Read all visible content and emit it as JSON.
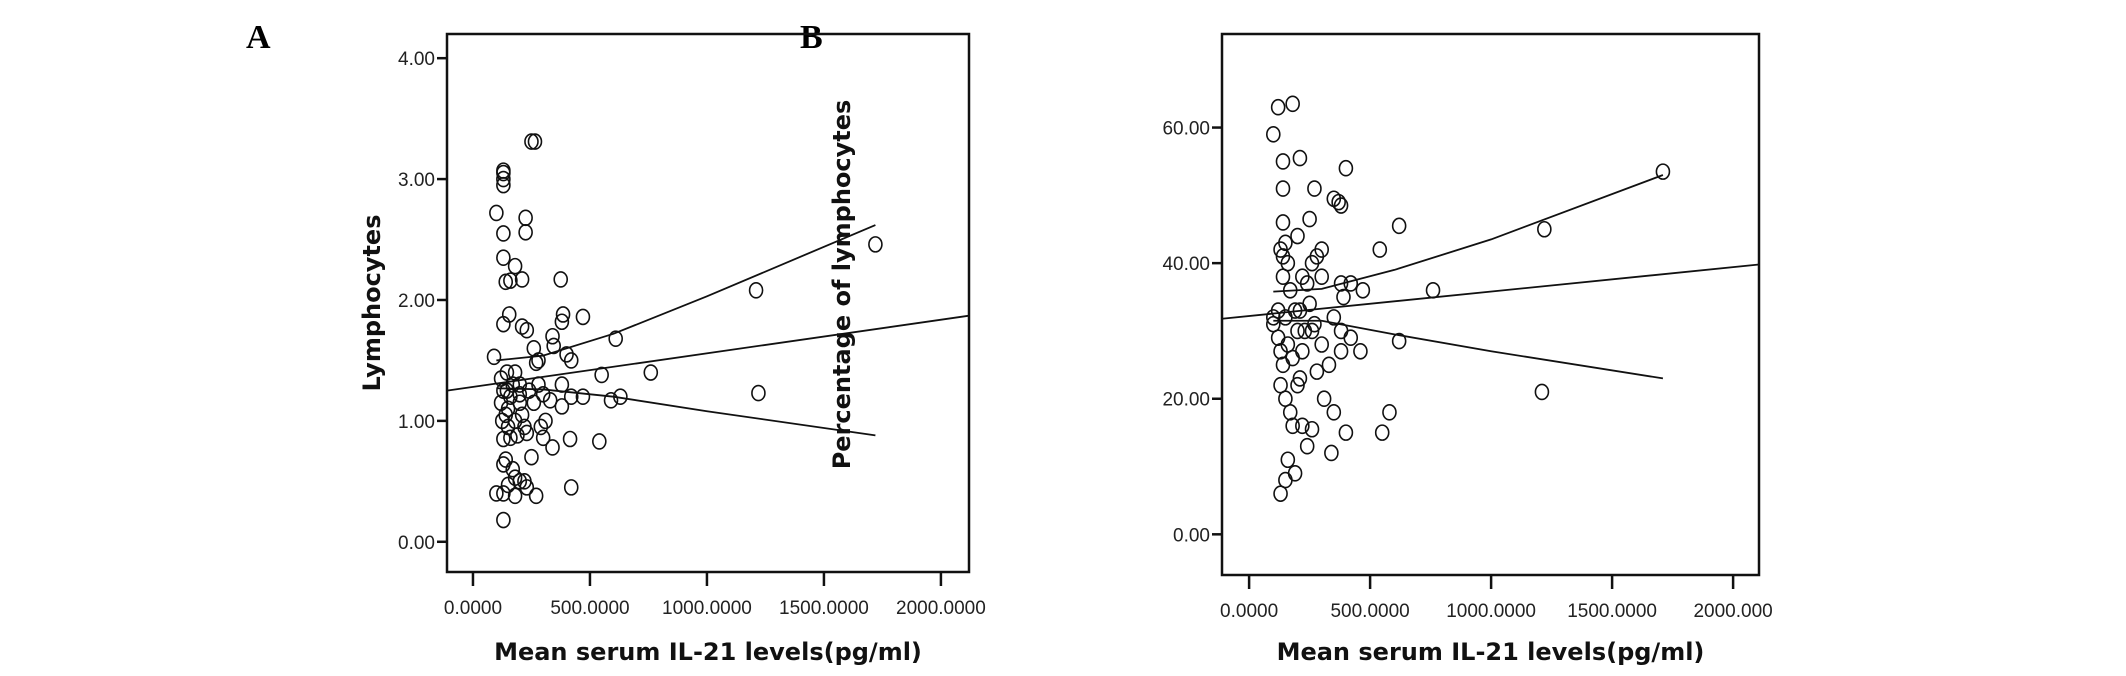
{
  "chart_data": [
    {
      "panel": "A",
      "type": "scatter",
      "xlabel": "Mean serum IL-21 levels(pg/ml)",
      "ylabel": "Lymphocytes",
      "xlim": [
        -111,
        2120
      ],
      "ylim": [
        -0.25,
        4.2
      ],
      "xticks": [
        0,
        500,
        1000,
        1500,
        2000
      ],
      "xtick_labels": [
        "0.0000",
        "500.0000",
        "1000.0000",
        "1500.0000",
        "2000.0000"
      ],
      "yticks": [
        0,
        1,
        2,
        3,
        4
      ],
      "ytick_labels": [
        "0.00",
        "1.00",
        "2.00",
        "3.00",
        "4.00"
      ],
      "grid": false,
      "marker": "open-circle",
      "points": [
        [
          250,
          3.31
        ],
        [
          265,
          3.31
        ],
        [
          130,
          3.05
        ],
        [
          130,
          3.0
        ],
        [
          130,
          2.95
        ],
        [
          130,
          3.07
        ],
        [
          100,
          2.72
        ],
        [
          130,
          2.55
        ],
        [
          225,
          2.68
        ],
        [
          225,
          2.56
        ],
        [
          130,
          2.35
        ],
        [
          180,
          2.28
        ],
        [
          140,
          2.15
        ],
        [
          160,
          2.16
        ],
        [
          210,
          2.17
        ],
        [
          375,
          2.17
        ],
        [
          155,
          1.88
        ],
        [
          130,
          1.8
        ],
        [
          210,
          1.78
        ],
        [
          230,
          1.75
        ],
        [
          385,
          1.88
        ],
        [
          380,
          1.82
        ],
        [
          470,
          1.86
        ],
        [
          340,
          1.7
        ],
        [
          345,
          1.62
        ],
        [
          90,
          1.53
        ],
        [
          260,
          1.6
        ],
        [
          280,
          1.5
        ],
        [
          270,
          1.48
        ],
        [
          400,
          1.55
        ],
        [
          420,
          1.5
        ],
        [
          610,
          1.68
        ],
        [
          760,
          1.4
        ],
        [
          1210,
          2.08
        ],
        [
          1720,
          2.46
        ],
        [
          1220,
          1.23
        ],
        [
          550,
          1.38
        ],
        [
          590,
          1.17
        ],
        [
          630,
          1.2
        ],
        [
          540,
          0.83
        ],
        [
          420,
          0.45
        ],
        [
          380,
          1.3
        ],
        [
          380,
          1.12
        ],
        [
          420,
          1.2
        ],
        [
          470,
          1.2
        ],
        [
          415,
          0.85
        ],
        [
          340,
          0.78
        ],
        [
          300,
          0.86
        ],
        [
          290,
          0.95
        ],
        [
          250,
          0.7
        ],
        [
          270,
          0.38
        ],
        [
          130,
          0.4
        ],
        [
          100,
          0.4
        ],
        [
          150,
          0.47
        ],
        [
          180,
          0.53
        ],
        [
          200,
          0.5
        ],
        [
          220,
          0.5
        ],
        [
          180,
          0.38
        ],
        [
          130,
          0.18
        ],
        [
          140,
          0.68
        ],
        [
          130,
          0.64
        ],
        [
          125,
          1.0
        ],
        [
          140,
          1.05
        ],
        [
          150,
          1.1
        ],
        [
          160,
          1.2
        ],
        [
          170,
          1.3
        ],
        [
          130,
          1.25
        ],
        [
          120,
          1.35
        ],
        [
          145,
          1.4
        ],
        [
          200,
          1.15
        ],
        [
          210,
          1.05
        ],
        [
          220,
          0.95
        ],
        [
          230,
          0.9
        ],
        [
          190,
          0.88
        ],
        [
          160,
          0.86
        ],
        [
          130,
          0.85
        ],
        [
          240,
          1.25
        ],
        [
          260,
          1.15
        ],
        [
          280,
          1.3
        ],
        [
          300,
          1.22
        ],
        [
          200,
          1.3
        ],
        [
          180,
          1.0
        ],
        [
          150,
          0.95
        ],
        [
          310,
          1.0
        ],
        [
          330,
          1.17
        ],
        [
          180,
          1.4
        ],
        [
          120,
          1.15
        ],
        [
          170,
          0.6
        ],
        [
          230,
          0.45
        ],
        [
          200,
          1.22
        ],
        [
          145,
          1.25
        ]
      ],
      "fit_line": [
        [
          -111,
          1.25
        ],
        [
          2120,
          1.87
        ]
      ],
      "ci_upper": [
        [
          100,
          1.5
        ],
        [
          300,
          1.54
        ],
        [
          600,
          1.72
        ],
        [
          1000,
          2.03
        ],
        [
          1720,
          2.62
        ]
      ],
      "ci_lower": [
        [
          100,
          1.27
        ],
        [
          300,
          1.26
        ],
        [
          600,
          1.2
        ],
        [
          1000,
          1.08
        ],
        [
          1720,
          0.88
        ]
      ]
    },
    {
      "panel": "B",
      "type": "scatter",
      "xlabel": "Mean serum IL-21 levels(pg/ml)",
      "ylabel": "Percentage of lymphocytes",
      "xlim": [
        -112,
        2107
      ],
      "ylim": [
        -6,
        73.8
      ],
      "xticks": [
        0,
        500,
        1000,
        1500,
        2000
      ],
      "xtick_labels": [
        "0.0000",
        "500.0000",
        "1000.0000",
        "1500.0000",
        "2000.000"
      ],
      "yticks": [
        0,
        20,
        40,
        60
      ],
      "ytick_labels": [
        "0.00",
        "20.00",
        "40.00",
        "60.00"
      ],
      "grid": false,
      "marker": "open-circle",
      "points": [
        [
          120,
          63
        ],
        [
          180,
          63.5
        ],
        [
          100,
          59
        ],
        [
          140,
          55
        ],
        [
          210,
          55.5
        ],
        [
          400,
          54
        ],
        [
          1710,
          53.5
        ],
        [
          140,
          51
        ],
        [
          270,
          51
        ],
        [
          350,
          49.5
        ],
        [
          370,
          49
        ],
        [
          380,
          48.5
        ],
        [
          140,
          46
        ],
        [
          250,
          46.5
        ],
        [
          620,
          45.5
        ],
        [
          1220,
          45
        ],
        [
          540,
          42
        ],
        [
          300,
          42
        ],
        [
          130,
          42
        ],
        [
          140,
          41
        ],
        [
          150,
          43
        ],
        [
          160,
          40
        ],
        [
          200,
          44
        ],
        [
          220,
          38
        ],
        [
          240,
          37
        ],
        [
          260,
          40
        ],
        [
          280,
          41
        ],
        [
          380,
          37
        ],
        [
          420,
          37
        ],
        [
          390,
          35
        ],
        [
          470,
          36
        ],
        [
          760,
          36
        ],
        [
          1210,
          21
        ],
        [
          300,
          38
        ],
        [
          140,
          38
        ],
        [
          170,
          36
        ],
        [
          190,
          33
        ],
        [
          210,
          33
        ],
        [
          230,
          30
        ],
        [
          100,
          31
        ],
        [
          120,
          29
        ],
        [
          130,
          27
        ],
        [
          150,
          32
        ],
        [
          160,
          28
        ],
        [
          200,
          30
        ],
        [
          260,
          30
        ],
        [
          270,
          31
        ],
        [
          300,
          28
        ],
        [
          380,
          30
        ],
        [
          420,
          29
        ],
        [
          380,
          27
        ],
        [
          460,
          27
        ],
        [
          620,
          28.5
        ],
        [
          310,
          20
        ],
        [
          330,
          25
        ],
        [
          400,
          15
        ],
        [
          550,
          15
        ],
        [
          580,
          18
        ],
        [
          350,
          18
        ],
        [
          140,
          25
        ],
        [
          130,
          22
        ],
        [
          150,
          20
        ],
        [
          170,
          18
        ],
        [
          180,
          16
        ],
        [
          220,
          16
        ],
        [
          240,
          13
        ],
        [
          260,
          15.5
        ],
        [
          210,
          23
        ],
        [
          340,
          12
        ],
        [
          190,
          9
        ],
        [
          160,
          11
        ],
        [
          150,
          8
        ],
        [
          130,
          6
        ],
        [
          120,
          33
        ],
        [
          100,
          32
        ],
        [
          180,
          26
        ],
        [
          200,
          22
        ],
        [
          280,
          24
        ],
        [
          220,
          27
        ],
        [
          250,
          34
        ],
        [
          350,
          32
        ]
      ],
      "fit_line": [
        [
          -112,
          31.8
        ],
        [
          2107,
          39.8
        ]
      ],
      "ci_upper": [
        [
          100,
          35.8
        ],
        [
          300,
          36.2
        ],
        [
          600,
          39
        ],
        [
          1000,
          43.5
        ],
        [
          1710,
          53
        ]
      ],
      "ci_lower": [
        [
          100,
          31.5
        ],
        [
          300,
          31.5
        ],
        [
          600,
          29.5
        ],
        [
          1000,
          27
        ],
        [
          1710,
          23
        ]
      ]
    }
  ]
}
